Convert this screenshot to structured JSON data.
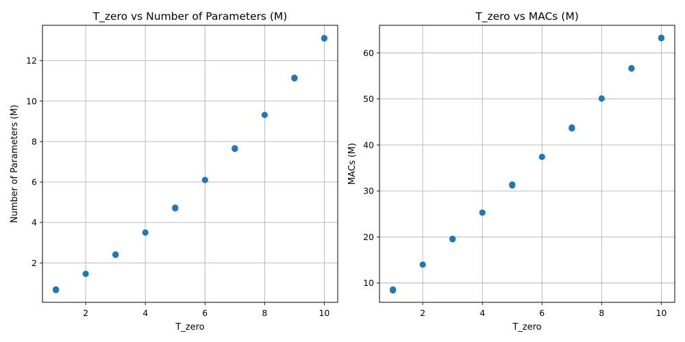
{
  "chart_data": [
    {
      "type": "scatter",
      "title": "T_zero vs Number of Parameters (M)",
      "xlabel": "T_zero",
      "ylabel": "Number of Parameters (M)",
      "xlim": [
        0.55,
        10.45
      ],
      "ylim": [
        0.05,
        13.75
      ],
      "xticks": [
        2,
        4,
        6,
        8,
        10
      ],
      "yticks": [
        2,
        4,
        6,
        8,
        10,
        12
      ],
      "grid": true,
      "color": "#1f77b4",
      "series": [
        {
          "x": [
            1,
            1,
            1,
            2,
            3,
            3,
            4,
            5,
            5,
            6,
            7,
            7,
            8,
            9,
            9,
            10,
            10
          ],
          "y": [
            0.66,
            0.67,
            0.69,
            1.46,
            2.4,
            2.42,
            3.5,
            4.7,
            4.73,
            6.1,
            7.64,
            7.67,
            9.32,
            11.13,
            11.16,
            13.1,
            13.12
          ]
        }
      ]
    },
    {
      "type": "scatter",
      "title": "T_zero vs MACs (M)",
      "xlabel": "T_zero",
      "ylabel": "MACs (M)",
      "xlim": [
        0.55,
        10.45
      ],
      "ylim": [
        5.8,
        66.0
      ],
      "xticks": [
        2,
        4,
        6,
        8,
        10
      ],
      "yticks": [
        10,
        20,
        30,
        40,
        50,
        60
      ],
      "grid": true,
      "color": "#1f77b4",
      "series": [
        {
          "x": [
            1,
            1,
            1,
            2,
            3,
            3,
            4,
            5,
            5,
            6,
            7,
            7,
            8,
            9,
            9,
            10,
            10
          ],
          "y": [
            8.4,
            8.5,
            8.6,
            14.0,
            19.5,
            19.6,
            25.3,
            31.2,
            31.4,
            37.4,
            43.6,
            43.8,
            50.1,
            56.6,
            56.7,
            63.2,
            63.3
          ]
        }
      ]
    }
  ]
}
